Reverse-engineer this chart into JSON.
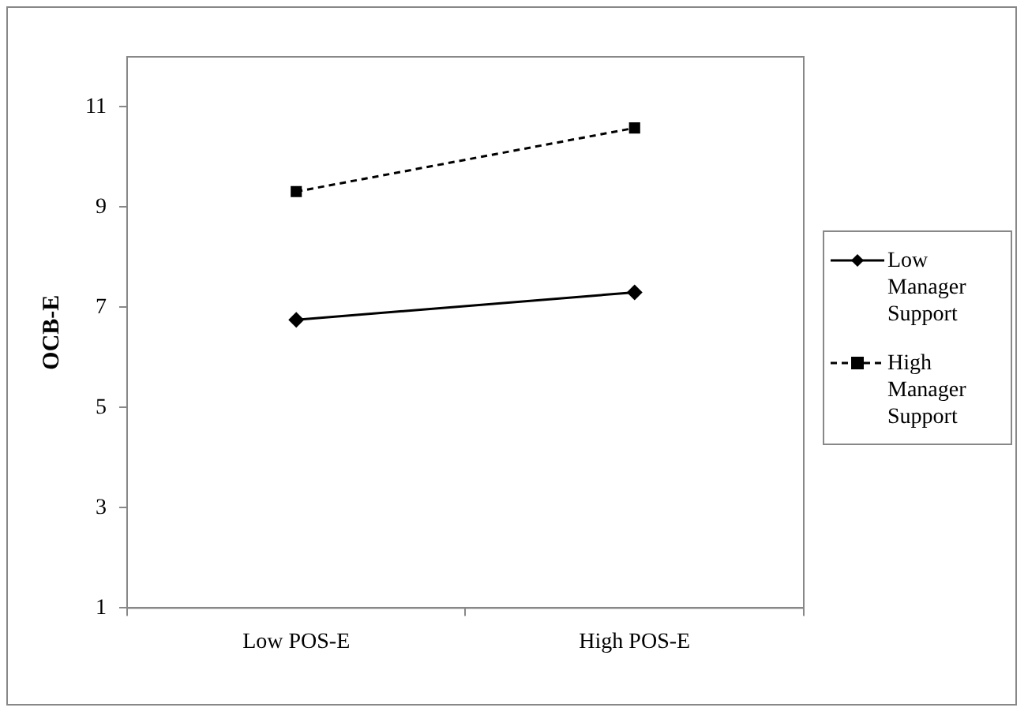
{
  "chart_data": {
    "type": "line",
    "ylabel": "OCB-E",
    "categories": [
      "Low POS-E",
      "High POS-E"
    ],
    "series": [
      {
        "name": "Low Manager Support",
        "color": "#000000",
        "values": [
          6.75,
          7.3
        ],
        "marker": "diamond",
        "line_style": "solid"
      },
      {
        "name": "High Manager Support",
        "color": "#000000",
        "values": [
          9.31,
          10.58
        ],
        "marker": "square",
        "line_style": "dashed"
      }
    ],
    "ylim": [
      1,
      12
    ],
    "yticks": [
      1,
      3,
      5,
      7,
      9,
      11
    ],
    "grid": false,
    "legend": "right"
  }
}
